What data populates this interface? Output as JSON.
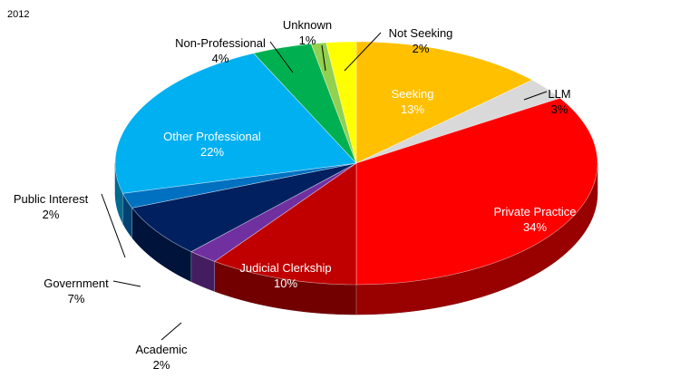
{
  "chart_data": {
    "type": "pie",
    "title": "2012",
    "style": "3d-exploded-free",
    "slices": [
      {
        "label": "Seeking",
        "value": 13,
        "display": "13%",
        "color": "#FFC000",
        "label_inside": true
      },
      {
        "label": "LLM",
        "value": 3,
        "display": "3%",
        "color": "#D9D9D9",
        "label_inside": false
      },
      {
        "label": "Private Practice",
        "value": 34,
        "display": "34%",
        "color": "#FF0000",
        "label_inside": true
      },
      {
        "label": "Judicial Clerkship",
        "value": 10,
        "display": "10%",
        "color": "#C00000",
        "label_inside": true
      },
      {
        "label": "Academic",
        "value": 2,
        "display": "2%",
        "color": "#7030A0",
        "label_inside": false
      },
      {
        "label": "Government",
        "value": 7,
        "display": "7%",
        "color": "#002060",
        "label_inside": false
      },
      {
        "label": "Public Interest",
        "value": 2,
        "display": "2%",
        "color": "#0070C0",
        "label_inside": false
      },
      {
        "label": "Other Professional",
        "value": 22,
        "display": "22%",
        "color": "#00B0F0",
        "label_inside": true
      },
      {
        "label": "Non-Professional",
        "value": 4,
        "display": "4%",
        "color": "#00B050",
        "label_inside": false
      },
      {
        "label": "Unknown",
        "value": 1,
        "display": "1%",
        "color": "#92D050",
        "label_inside": false
      },
      {
        "label": "Not Seeking",
        "value": 2,
        "display": "2%",
        "color": "#FFFF00",
        "label_inside": false
      }
    ]
  }
}
